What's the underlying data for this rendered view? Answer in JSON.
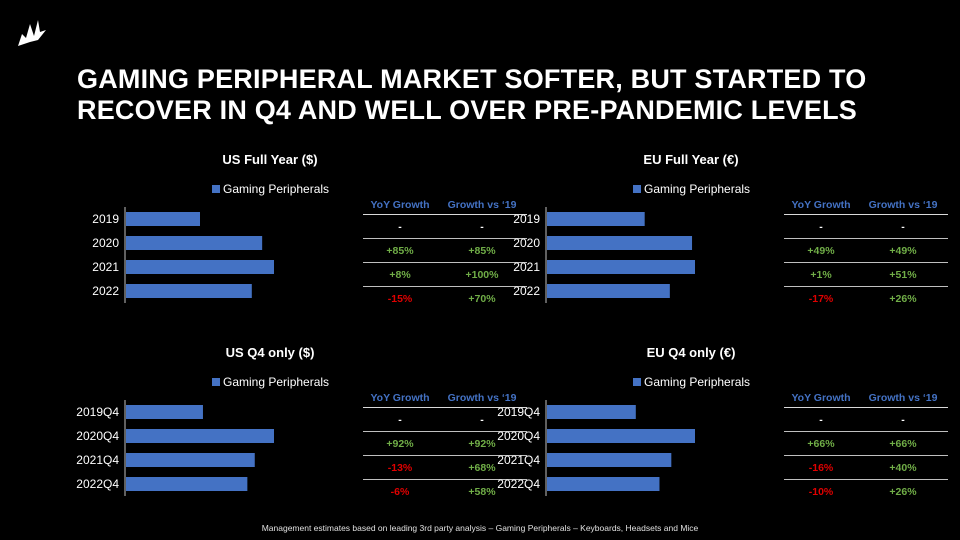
{
  "title": "GAMING PERIPHERAL MARKET SOFTER, BUT STARTED TO RECOVER IN Q4 AND WELL OVER PRE-PANDEMIC LEVELS",
  "logo": "sail-logo-icon",
  "table_headers": {
    "yoy": "YoY Growth",
    "vs19": "Growth vs ‘19"
  },
  "footnote": "Management estimates based on leading 3rd party analysis – Gaming Peripherals – Keyboards, Headsets and Mice",
  "colors": {
    "bar": "#4472c4",
    "positive": "#70ad47",
    "negative": "#e00000"
  },
  "chart_data": [
    {
      "type": "bar",
      "orientation": "horizontal",
      "title": "US Full Year ($)",
      "legend": "Gaming Peripherals",
      "categories": [
        "2019",
        "2020",
        "2021",
        "2022"
      ],
      "values": [
        0.5,
        0.92,
        1.0,
        0.85
      ],
      "yoy": [
        "-",
        "+85%",
        "+8%",
        "-15%"
      ],
      "vs19": [
        "-",
        "+85%",
        "+100%",
        "+70%"
      ]
    },
    {
      "type": "bar",
      "orientation": "horizontal",
      "title": "EU Full Year (€)",
      "legend": "Gaming Peripherals",
      "categories": [
        "2019",
        "2020",
        "2021",
        "2022"
      ],
      "values": [
        0.66,
        0.98,
        1.0,
        0.83
      ],
      "yoy": [
        "-",
        "+49%",
        "+1%",
        "-17%"
      ],
      "vs19": [
        "-",
        "+49%",
        "+51%",
        "+26%"
      ]
    },
    {
      "type": "bar",
      "orientation": "horizontal",
      "title": "US Q4 only ($)",
      "legend": "Gaming Peripherals",
      "categories": [
        "2019Q4",
        "2020Q4",
        "2021Q4",
        "2022Q4"
      ],
      "values": [
        0.52,
        1.0,
        0.87,
        0.82
      ],
      "yoy": [
        "-",
        "+92%",
        "-13%",
        "-6%"
      ],
      "vs19": [
        "-",
        "+92%",
        "+68%",
        "+58%"
      ]
    },
    {
      "type": "bar",
      "orientation": "horizontal",
      "title": "EU Q4 only (€)",
      "legend": "Gaming Peripherals",
      "categories": [
        "2019Q4",
        "2020Q4",
        "2021Q4",
        "2022Q4"
      ],
      "values": [
        0.6,
        1.0,
        0.84,
        0.76
      ],
      "yoy": [
        "-",
        "+66%",
        "-16%",
        "-10%"
      ],
      "vs19": [
        "-",
        "+66%",
        "+40%",
        "+26%"
      ]
    }
  ]
}
